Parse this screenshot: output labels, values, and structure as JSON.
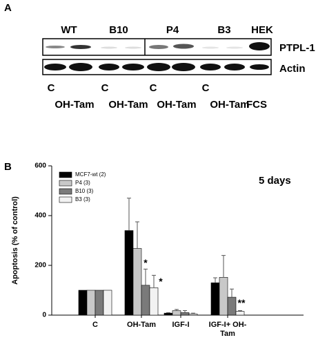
{
  "blot": {
    "panel_label": "A",
    "lanes_top": [
      "WT",
      "B10",
      "P4",
      "B3",
      "HEK"
    ],
    "rows": [
      "PTPL-1",
      "Actin"
    ],
    "lanes_bottom": [
      "C",
      "OH-Tam",
      "C",
      "OH-Tam",
      "C",
      "OH-Tam",
      "C",
      "OH-Tam",
      "FCS"
    ]
  },
  "chart_data": {
    "type": "bar",
    "panel_label": "B",
    "note": "5 days",
    "y_label": "Apoptosis (% of control)",
    "categories": [
      "C",
      "OH-Tam",
      "IGF-I",
      "IGF-I+ OH-Tam"
    ],
    "series": [
      {
        "name": "MCF7-wt (2)",
        "color": "#000000",
        "values": [
          100,
          340,
          8,
          130
        ],
        "errors": [
          null,
          130,
          2,
          20
        ]
      },
      {
        "name": "P4 (3)",
        "color": "#c8c8c8",
        "values": [
          100,
          268,
          18,
          152
        ],
        "errors": [
          null,
          107,
          5,
          88
        ]
      },
      {
        "name": "B10 (3)",
        "color": "#7a7a7a",
        "values": [
          100,
          120,
          10,
          72
        ],
        "errors": [
          null,
          65,
          8,
          33
        ]
      },
      {
        "name": "B3 (3)",
        "color": "#f2f2f2",
        "values": [
          100,
          110,
          5,
          15
        ],
        "errors": [
          null,
          50,
          3,
          3
        ]
      }
    ],
    "annotations": [
      "*",
      "*",
      "**"
    ],
    "ylim": [
      0,
      600
    ],
    "yticks": [
      0,
      200,
      400,
      600
    ],
    "legend": "upper left"
  }
}
